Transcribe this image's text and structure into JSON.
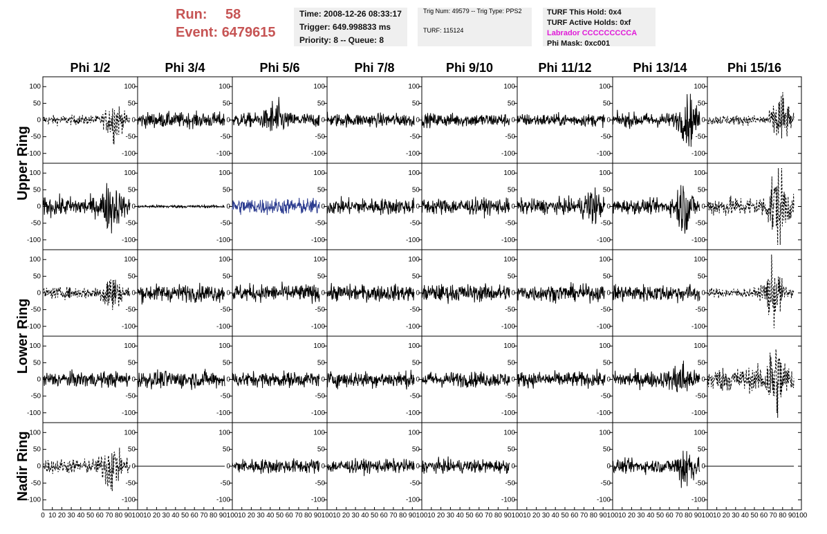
{
  "header": {
    "run_label": "Run:",
    "run_value": "58",
    "event_label": "Event:",
    "event_value": "6479615",
    "time": "Time: 2008-12-26 08:33:17",
    "trigger": "Trigger: 649.998833 ms",
    "priority": "Priority: 8 -- Queue: 8",
    "trig_num": "Trig Num: 49579 -- Trig Type: PPS2",
    "turf": "TURF: 115124",
    "turf_hold": "TURF This Hold: 0x4",
    "turf_active": "TURF Active Holds: 0xf",
    "labrador": "Labrador CCCCCCCCCA",
    "phi_mask": "Phi Mask: 0xc001"
  },
  "colors": {
    "run": "#c65454",
    "labrador": "#e01ad8",
    "highlight_trace": "#2b3b8f",
    "panel_bg": "#efefef"
  },
  "chart_data": {
    "type": "line",
    "columns": [
      "Phi 1/2",
      "Phi 3/4",
      "Phi 5/6",
      "Phi 7/8",
      "Phi 9/10",
      "Phi 11/12",
      "Phi 13/14",
      "Phi 15/16"
    ],
    "ring_labels": [
      {
        "label": "Upper Ring",
        "rows": [
          0,
          1
        ]
      },
      {
        "label": "Lower Ring",
        "rows": [
          2,
          3
        ]
      },
      {
        "label": "Nadir Ring",
        "rows": [
          4
        ]
      }
    ],
    "xlim": [
      0,
      100
    ],
    "ylim": [
      -115,
      115
    ],
    "x_ticks": [
      0,
      10,
      20,
      30,
      40,
      50,
      60,
      70,
      80,
      90,
      100
    ],
    "y_ticks": [
      -100,
      -50,
      0,
      50,
      100
    ],
    "rows": [
      [
        {
          "amp": 10,
          "burst": 38,
          "burst_pos": 75,
          "dashed": true
        },
        {
          "amp": 16
        },
        {
          "amp": 15,
          "burst": 32,
          "burst_pos": 45
        },
        {
          "amp": 14
        },
        {
          "amp": 14
        },
        {
          "amp": 13
        },
        {
          "amp": 15,
          "burst": 42,
          "burst_pos": 80
        },
        {
          "amp": 10,
          "burst": 55,
          "burst_pos": 78,
          "dashed": true
        }
      ],
      [
        {
          "amp": 20,
          "burst": 40,
          "burst_pos": 72
        },
        {
          "amp": 3
        },
        {
          "amp": 17,
          "color": "#2b3b8f"
        },
        {
          "amp": 17
        },
        {
          "amp": 17
        },
        {
          "amp": 16,
          "burst": 30,
          "burst_pos": 78
        },
        {
          "amp": 15,
          "burst": 48,
          "burst_pos": 75
        },
        {
          "amp": 20,
          "burst": 85,
          "burst_pos": 75,
          "dashed": true
        }
      ],
      [
        {
          "amp": 12,
          "burst": 38,
          "burst_pos": 72,
          "dashed": true
        },
        {
          "amp": 18
        },
        {
          "amp": 18
        },
        {
          "amp": 17
        },
        {
          "amp": 18
        },
        {
          "amp": 17
        },
        {
          "amp": 18
        },
        {
          "amp": 10,
          "burst": 60,
          "burst_pos": 70,
          "dashed": true
        }
      ],
      [
        {
          "amp": 16
        },
        {
          "amp": 18
        },
        {
          "amp": 16
        },
        {
          "amp": 17
        },
        {
          "amp": 16
        },
        {
          "amp": 16
        },
        {
          "amp": 17,
          "burst": 30,
          "burst_pos": 72
        },
        {
          "amp": 25,
          "burst": 75,
          "burst_pos": 72,
          "dashed": true
        }
      ],
      [
        {
          "amp": 15,
          "burst": 45,
          "burst_pos": 72,
          "dashed": true
        },
        {
          "amp": 0
        },
        {
          "amp": 15
        },
        {
          "amp": 14
        },
        {
          "amp": 14
        },
        null,
        {
          "amp": 14,
          "burst": 45,
          "burst_pos": 77
        },
        {
          "amp": 0
        }
      ]
    ]
  }
}
